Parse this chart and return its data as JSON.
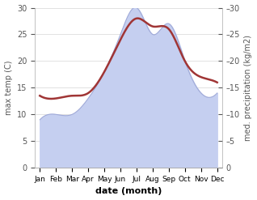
{
  "months": [
    "Jan",
    "Feb",
    "Mar",
    "Apr",
    "May",
    "Jun",
    "Jul",
    "Aug",
    "Sep",
    "Oct",
    "Nov",
    "Dec"
  ],
  "x": [
    0,
    1,
    2,
    3,
    4,
    5,
    6,
    7,
    8,
    9,
    10,
    11
  ],
  "precipitation": [
    9,
    10,
    10,
    13,
    18,
    25,
    30,
    25,
    27,
    20,
    14,
    14
  ],
  "max_temp": [
    13.5,
    13.0,
    13.5,
    14.0,
    18.0,
    24.0,
    28.0,
    26.5,
    26.0,
    20.0,
    17.0,
    16.0
  ],
  "precip_color_fill": "#c5cff0",
  "precip_edge_color": "#a0aad8",
  "temp_color": "#a03535",
  "ylabel_left": "max temp (C)",
  "ylabel_right": "med. precipitation (kg/m2)",
  "xlabel": "date (month)",
  "ylim": [
    0,
    30
  ],
  "yticks": [
    0,
    5,
    10,
    15,
    20,
    25,
    30
  ],
  "background_color": "#ffffff",
  "spine_color": "#aaaaaa",
  "tick_color": "#555555"
}
